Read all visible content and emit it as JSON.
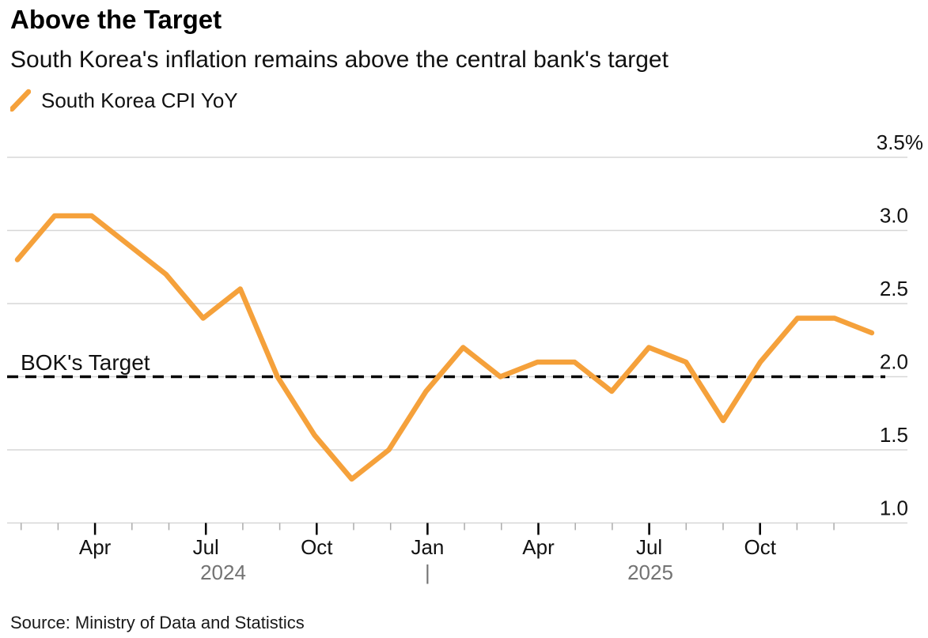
{
  "header": {
    "title": "Above the Target",
    "subtitle": "South Korea's inflation remains above the central bank's target"
  },
  "legend": {
    "label": "South Korea CPI YoY"
  },
  "chart_data": {
    "type": "line",
    "title": "Above the Target",
    "subtitle": "South Korea's inflation remains above the central bank's target",
    "unit": "%",
    "x": [
      "Jan 2024",
      "Feb 2024",
      "Mar 2024",
      "Apr 2024",
      "May 2024",
      "Jun 2024",
      "Jul 2024",
      "Aug 2024",
      "Sep 2024",
      "Oct 2024",
      "Nov 2024",
      "Dec 2024",
      "Jan 2025",
      "Feb 2025",
      "Mar 2025",
      "Apr 2025",
      "May 2025",
      "Jun 2025",
      "Jul 2025",
      "Aug 2025",
      "Sep 2025",
      "Oct 2025",
      "Nov 2025",
      "Dec 2025"
    ],
    "series": [
      {
        "name": "South Korea CPI YoY",
        "values": [
          2.8,
          3.1,
          3.1,
          2.9,
          2.7,
          2.4,
          2.6,
          2.0,
          1.6,
          1.3,
          1.5,
          1.9,
          2.2,
          2.0,
          2.1,
          2.1,
          1.9,
          2.2,
          2.1,
          1.7,
          2.1,
          2.4,
          2.4,
          2.3
        ]
      }
    ],
    "target_line": {
      "label": "BOK's Target",
      "value": 2.0
    },
    "y_axis": {
      "range": [
        1.0,
        3.5
      ],
      "ticks": [
        {
          "value": 3.5,
          "label": "3.5%"
        },
        {
          "value": 3.0,
          "label": "3.0"
        },
        {
          "value": 2.5,
          "label": "2.5"
        },
        {
          "value": 2.0,
          "label": "2.0"
        },
        {
          "value": 1.5,
          "label": "1.5"
        },
        {
          "value": 1.0,
          "label": "1.0"
        }
      ]
    },
    "x_axis": {
      "major_ticks": [
        {
          "month_index": 3,
          "label": "Apr"
        },
        {
          "month_index": 6,
          "label": "Jul"
        },
        {
          "month_index": 9,
          "label": "Oct"
        },
        {
          "month_index": 12,
          "label": "Jan"
        },
        {
          "month_index": 15,
          "label": "Apr"
        },
        {
          "month_index": 18,
          "label": "Jul"
        },
        {
          "month_index": 21,
          "label": "Oct"
        }
      ],
      "year_labels": [
        "2024",
        "2025"
      ],
      "year_separator": "|"
    },
    "legend_position": "top-left",
    "grid": true,
    "colors": {
      "line": "#F5A13B",
      "target_line": "#000000",
      "gridline": "#D7D7D7",
      "minor_tick": "#ABABAB",
      "major_tick": "#000000",
      "year_text": "#737373"
    }
  },
  "footer": {
    "source": "Source: Ministry of Data and Statistics"
  }
}
